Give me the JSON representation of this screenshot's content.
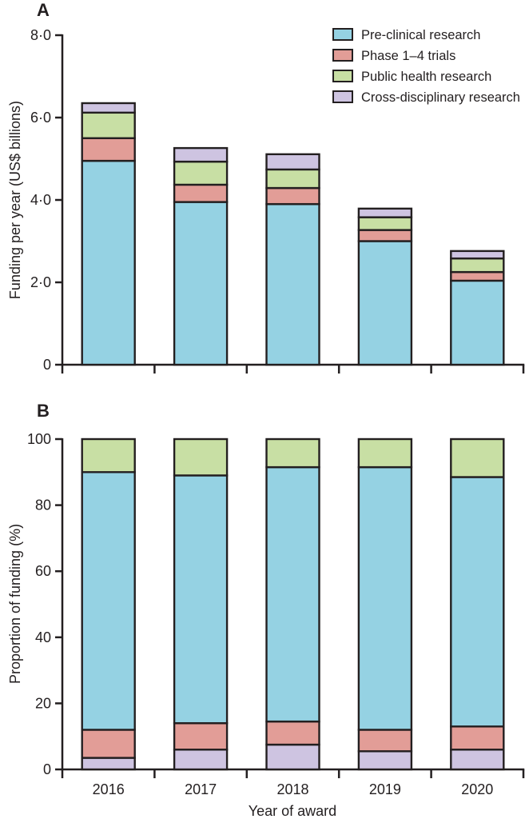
{
  "legend": {
    "items": [
      {
        "key": "pre-clinical",
        "label": "Pre-clinical research",
        "color": "#95d2e3"
      },
      {
        "key": "phase-1-4-trials",
        "label": "Phase 1–4 trials",
        "color": "#e29d97"
      },
      {
        "key": "public-health",
        "label": "Public health research",
        "color": "#c8dfa4"
      },
      {
        "key": "cross-disciplinary",
        "label": "Cross-disciplinary research",
        "color": "#cec4e1"
      }
    ]
  },
  "colors": {
    "axis": "#231f20",
    "pre_clinical": "#95d2e3",
    "phase_trials": "#e29d97",
    "public_health": "#c8dfa4",
    "cross_disciplinary": "#cec4e1"
  },
  "chart_data": [
    {
      "id": "panel-a",
      "type": "bar",
      "stacked": true,
      "panel_label": "A",
      "categories": [
        "2016",
        "2017",
        "2018",
        "2019",
        "2020"
      ],
      "series": [
        {
          "name": "Pre-clinical research",
          "key": "pre-clinical",
          "color": "#95d2e3",
          "values": [
            4.95,
            3.95,
            3.9,
            3.0,
            2.04
          ]
        },
        {
          "name": "Phase 1–4 trials",
          "key": "phase-1-4-trials",
          "color": "#e29d97",
          "values": [
            0.55,
            0.42,
            0.39,
            0.27,
            0.21
          ]
        },
        {
          "name": "Public health research",
          "key": "public-health",
          "color": "#c8dfa4",
          "values": [
            0.62,
            0.56,
            0.45,
            0.31,
            0.33
          ]
        },
        {
          "name": "Cross-disciplinary research",
          "key": "cross-disciplinary",
          "color": "#cec4e1",
          "values": [
            0.23,
            0.33,
            0.37,
            0.21,
            0.18
          ]
        }
      ],
      "ylabel": "Funding per year (US$ billions)",
      "xlabel": "",
      "ylim": [
        0,
        8
      ],
      "yticks": [
        {
          "value": 0,
          "label": "0"
        },
        {
          "value": 2,
          "label": "2·0"
        },
        {
          "value": 4,
          "label": "4·0"
        },
        {
          "value": 6,
          "label": "6·0"
        },
        {
          "value": 8,
          "label": "8·0"
        }
      ],
      "grid": false,
      "x_tick_labels": false,
      "legend_position": "top-right"
    },
    {
      "id": "panel-b",
      "type": "bar",
      "stacked": true,
      "panel_label": "B",
      "categories": [
        "2016",
        "2017",
        "2018",
        "2019",
        "2020"
      ],
      "series": [
        {
          "name": "Cross-disciplinary research",
          "key": "cross-disciplinary",
          "color": "#cec4e1",
          "values": [
            3.5,
            6.0,
            7.5,
            5.5,
            6.0
          ]
        },
        {
          "name": "Phase 1–4 trials",
          "key": "phase-1-4-trials",
          "color": "#e29d97",
          "values": [
            8.5,
            8.0,
            7.0,
            6.5,
            7.0
          ]
        },
        {
          "name": "Pre-clinical research",
          "key": "pre-clinical",
          "color": "#95d2e3",
          "values": [
            78.0,
            75.0,
            77.0,
            79.5,
            75.5
          ]
        },
        {
          "name": "Public health research",
          "key": "public-health",
          "color": "#c8dfa4",
          "values": [
            10.0,
            11.0,
            8.5,
            8.5,
            11.5
          ]
        }
      ],
      "ylabel": "Proportion of funding (%)",
      "xlabel": "Year of award",
      "ylim": [
        0,
        100
      ],
      "yticks": [
        {
          "value": 0,
          "label": "0"
        },
        {
          "value": 20,
          "label": "20"
        },
        {
          "value": 40,
          "label": "40"
        },
        {
          "value": 60,
          "label": "60"
        },
        {
          "value": 80,
          "label": "80"
        },
        {
          "value": 100,
          "label": "100"
        }
      ],
      "grid": false,
      "x_tick_labels": true,
      "legend_position": "none"
    }
  ]
}
